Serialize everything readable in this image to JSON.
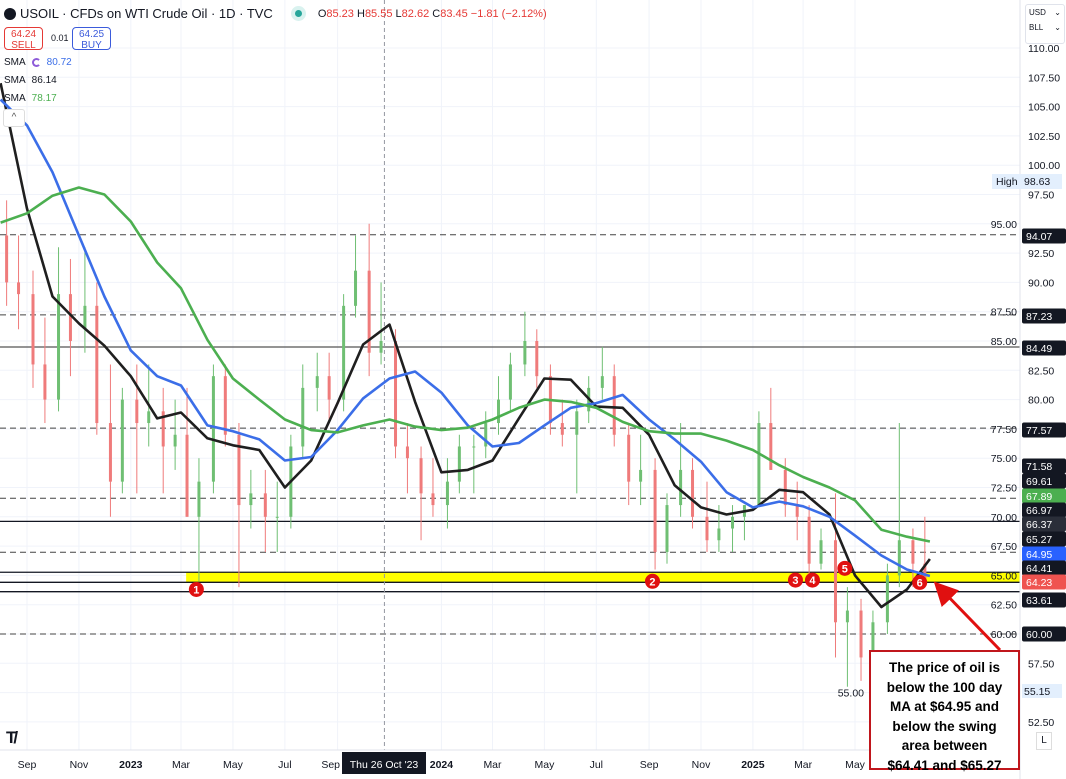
{
  "header": {
    "title": "USOIL · CFDs on WTI Crude Oil · 1D · TVC",
    "ohlc": {
      "o_label": "O",
      "o": "85.23",
      "h_label": "H",
      "h": "85.55",
      "l_label": "L",
      "l": "82.62",
      "c_label": "C",
      "c": "83.45",
      "change": "−1.81 (−2.12%)"
    }
  },
  "trade": {
    "sell_price": "64.24",
    "sell_label": "SELL",
    "spread": "0.01",
    "buy_price": "64.25",
    "buy_label": "BUY"
  },
  "legend": [
    {
      "name": "SMA",
      "value": "80.72",
      "color": "#3b6ee8"
    },
    {
      "name": "SMA",
      "value": "86.14",
      "color": "#131722"
    },
    {
      "name": "SMA",
      "value": "78.17",
      "color": "#4caf50"
    }
  ],
  "currency": {
    "currency": "USD",
    "unit": "BLL"
  },
  "crosshair_label": "Thu 26 Oct '23",
  "high_marker": {
    "label": "High",
    "value": "98.63"
  },
  "low_marker": {
    "value": "55.15"
  },
  "annotation": {
    "lines": [
      "The price of oil is",
      "below the 100 day",
      "MA at $64.95 and",
      "below the swing",
      "area between",
      "$64.41 and $65.27"
    ]
  },
  "log_button": "L",
  "colors": {
    "up": "#6fbf73",
    "down": "#ef7b7b",
    "sma_fast": "#1f1f1f",
    "sma_mid": "#3b6ee8",
    "sma_slow": "#4caf50",
    "swing_zone": "#ffff00",
    "marker": "#e01010",
    "annotation": "#c0161c"
  },
  "chart_data": {
    "type": "candlestick",
    "y_axis": {
      "max": 110,
      "min": 52.5,
      "ticks": [
        "110.00",
        "107.50",
        "105.00",
        "102.50",
        "100.00",
        "97.50",
        "95.00",
        "92.50",
        "90.00",
        "87.50",
        "85.00",
        "82.50",
        "80.00",
        "77.50",
        "75.00",
        "72.50",
        "70.00",
        "67.50",
        "65.00",
        "62.50",
        "60.00",
        "57.50",
        "55.00",
        "52.50"
      ]
    },
    "x_ticks": [
      {
        "label": "Sep",
        "date": "2022-09-01",
        "bold": false
      },
      {
        "label": "Nov",
        "date": "2022-11-01",
        "bold": false
      },
      {
        "label": "2023",
        "date": "2023-01-01",
        "bold": true
      },
      {
        "label": "Mar",
        "date": "2023-03-01",
        "bold": false
      },
      {
        "label": "May",
        "date": "2023-05-01",
        "bold": false
      },
      {
        "label": "Jul",
        "date": "2023-07-01",
        "bold": false
      },
      {
        "label": "Sep",
        "date": "2023-09-01",
        "bold": false
      },
      {
        "label": "2024",
        "date": "2024-01-01",
        "bold": true
      },
      {
        "label": "Mar",
        "date": "2024-03-01",
        "bold": false
      },
      {
        "label": "May",
        "date": "2024-05-01",
        "bold": false
      },
      {
        "label": "Jul",
        "date": "2024-07-01",
        "bold": false
      },
      {
        "label": "Sep",
        "date": "2024-09-01",
        "bold": false
      },
      {
        "label": "Nov",
        "date": "2024-11-01",
        "bold": false
      },
      {
        "label": "2025",
        "date": "2025-01-01",
        "bold": true
      },
      {
        "label": "Mar",
        "date": "2025-03-01",
        "bold": false
      },
      {
        "label": "May",
        "date": "2025-05-01",
        "bold": false
      }
    ],
    "crosshair_date": "2023-10-26",
    "candles_ohlc": [
      [
        "2022-08-01",
        94,
        97,
        88,
        90
      ],
      [
        "2022-08-15",
        90,
        94,
        86,
        89
      ],
      [
        "2022-09-01",
        89,
        91,
        81,
        83
      ],
      [
        "2022-09-15",
        83,
        87,
        78,
        80
      ],
      [
        "2022-10-01",
        80,
        93,
        79,
        89
      ],
      [
        "2022-10-15",
        89,
        92,
        82,
        85
      ],
      [
        "2022-11-01",
        86,
        93,
        84,
        88
      ],
      [
        "2022-11-15",
        88,
        90,
        77,
        78
      ],
      [
        "2022-12-01",
        78,
        83,
        70,
        73
      ],
      [
        "2022-12-15",
        73,
        81,
        72,
        80
      ],
      [
        "2023-01-01",
        80,
        83,
        72,
        78
      ],
      [
        "2023-01-15",
        78,
        83,
        76,
        79
      ],
      [
        "2023-02-01",
        79,
        81,
        72,
        76
      ],
      [
        "2023-02-15",
        76,
        80,
        74,
        77
      ],
      [
        "2023-03-01",
        77,
        81,
        70,
        70
      ],
      [
        "2023-03-15",
        70,
        75,
        64.5,
        73
      ],
      [
        "2023-04-01",
        73,
        83,
        72,
        82
      ],
      [
        "2023-04-15",
        82,
        83,
        76,
        77
      ],
      [
        "2023-05-01",
        77,
        78,
        64,
        71
      ],
      [
        "2023-05-15",
        71,
        74,
        69,
        72
      ],
      [
        "2023-06-01",
        72,
        74,
        67,
        70
      ],
      [
        "2023-06-15",
        70,
        73,
        67,
        70
      ],
      [
        "2023-07-01",
        70,
        77,
        69,
        76
      ],
      [
        "2023-07-15",
        76,
        83,
        75,
        81
      ],
      [
        "2023-08-01",
        81,
        84,
        79,
        82
      ],
      [
        "2023-08-15",
        82,
        84,
        78,
        80
      ],
      [
        "2023-09-01",
        80,
        89,
        79,
        88
      ],
      [
        "2023-09-15",
        88,
        94,
        87,
        91
      ],
      [
        "2023-10-01",
        91,
        95,
        82,
        84
      ],
      [
        "2023-10-15",
        84,
        90,
        83,
        85
      ],
      [
        "2023-11-01",
        85,
        86,
        75,
        76
      ],
      [
        "2023-11-15",
        76,
        78,
        72,
        75
      ],
      [
        "2023-12-01",
        75,
        76,
        68,
        72
      ],
      [
        "2023-12-15",
        72,
        75,
        70,
        71
      ],
      [
        "2024-01-01",
        71,
        75,
        69,
        73
      ],
      [
        "2024-01-15",
        73,
        77,
        72,
        76
      ],
      [
        "2024-02-01",
        76,
        77,
        72,
        76
      ],
      [
        "2024-02-15",
        76,
        79,
        75,
        78
      ],
      [
        "2024-03-01",
        78,
        82,
        77,
        80
      ],
      [
        "2024-03-15",
        80,
        84,
        79,
        83
      ],
      [
        "2024-04-01",
        83,
        87.5,
        82,
        85
      ],
      [
        "2024-04-15",
        85,
        86,
        81,
        82
      ],
      [
        "2024-05-01",
        82,
        83,
        77,
        78
      ],
      [
        "2024-05-15",
        78,
        80,
        76,
        77
      ],
      [
        "2024-06-01",
        77,
        80,
        72,
        79
      ],
      [
        "2024-06-15",
        79,
        82,
        78,
        81
      ],
      [
        "2024-07-01",
        81,
        84.5,
        80,
        82
      ],
      [
        "2024-07-15",
        82,
        83,
        76,
        77
      ],
      [
        "2024-08-01",
        77,
        78,
        71,
        73
      ],
      [
        "2024-08-15",
        73,
        77,
        71,
        74
      ],
      [
        "2024-09-01",
        74,
        75,
        65.5,
        67
      ],
      [
        "2024-09-15",
        67,
        72,
        66,
        71
      ],
      [
        "2024-10-01",
        71,
        78,
        70,
        74
      ],
      [
        "2024-10-15",
        74,
        75,
        69,
        70
      ],
      [
        "2024-11-01",
        70,
        73,
        67,
        68
      ],
      [
        "2024-11-15",
        68,
        71,
        67,
        69
      ],
      [
        "2024-12-01",
        69,
        71,
        67,
        70
      ],
      [
        "2024-12-15",
        70,
        71,
        68,
        71
      ],
      [
        "2025-01-01",
        71,
        79,
        71,
        78
      ],
      [
        "2025-01-15",
        78,
        81,
        74,
        74
      ],
      [
        "2025-02-01",
        74,
        75,
        70,
        71
      ],
      [
        "2025-02-15",
        71,
        73,
        68,
        70
      ],
      [
        "2025-03-01",
        70,
        71,
        65,
        66
      ],
      [
        "2025-03-15",
        66,
        69,
        65.5,
        68
      ],
      [
        "2025-04-01",
        68,
        72,
        58,
        61
      ],
      [
        "2025-04-15",
        61,
        64,
        55.5,
        62
      ],
      [
        "2025-05-01",
        62,
        63,
        56,
        58
      ],
      [
        "2025-05-15",
        58,
        62,
        57,
        61
      ],
      [
        "2025-06-01",
        61,
        66,
        60,
        65
      ],
      [
        "2025-06-15",
        65,
        78,
        64,
        68
      ],
      [
        "2025-07-01",
        68,
        69,
        64,
        66
      ],
      [
        "2025-07-15",
        66,
        70,
        64,
        64.23
      ]
    ],
    "sma_dates": [
      "2022-08-01",
      "2022-09-01",
      "2022-10-01",
      "2022-11-01",
      "2022-12-01",
      "2023-01-01",
      "2023-02-01",
      "2023-03-01",
      "2023-04-01",
      "2023-05-01",
      "2023-06-01",
      "2023-07-01",
      "2023-08-01",
      "2023-09-01",
      "2023-10-01",
      "2023-11-01",
      "2023-12-01",
      "2024-01-01",
      "2024-02-01",
      "2024-03-01",
      "2024-04-01",
      "2024-05-01",
      "2024-06-01",
      "2024-07-01",
      "2024-08-01",
      "2024-09-01",
      "2024-10-01",
      "2024-11-01",
      "2024-12-01",
      "2025-01-01",
      "2025-02-01",
      "2025-03-01",
      "2025-04-01",
      "2025-05-01",
      "2025-06-01",
      "2025-07-01",
      "2025-07-28"
    ],
    "series": [
      {
        "name": "SMA",
        "color": "#1f1f1f",
        "values": [
          107.0,
          96.3,
          88.8,
          86.5,
          84.6,
          82.0,
          78.4,
          78.9,
          76.7,
          76.1,
          75.7,
          72.5,
          74.8,
          79.7,
          84.7,
          86.4,
          79.8,
          73.8,
          74.0,
          74.8,
          78.4,
          81.8,
          81.7,
          79.4,
          79.3,
          77.0,
          72.7,
          70.8,
          70.2,
          70.6,
          72.3,
          72.1,
          70.2,
          65.0,
          62.3,
          63.8,
          66.4
        ]
      },
      {
        "name": "SMA",
        "color": "#3b6ee8",
        "values": [
          105.6,
          103.4,
          99.4,
          94.0,
          88.8,
          84.2,
          82.0,
          81.2,
          77.8,
          77.3,
          76.6,
          74.8,
          75.1,
          77.4,
          80.1,
          81.8,
          82.4,
          80.6,
          77.8,
          76.0,
          76.3,
          77.8,
          79.3,
          79.7,
          80.4,
          78.3,
          76.6,
          74.7,
          72.1,
          70.8,
          71.3,
          70.9,
          70.0,
          68.4,
          66.7,
          65.5,
          64.95
        ]
      },
      {
        "name": "SMA",
        "color": "#4caf50",
        "values": [
          95.1,
          95.9,
          97.4,
          98.1,
          97.5,
          95.2,
          91.7,
          89.5,
          85.1,
          81.8,
          80.0,
          78.3,
          77.4,
          77.2,
          77.8,
          78.3,
          77.7,
          77.4,
          77.6,
          78.3,
          79.3,
          80.0,
          79.8,
          79.3,
          78.1,
          77.3,
          77.1,
          77.1,
          76.5,
          75.7,
          74.4,
          73.4,
          72.5,
          71.4,
          68.9,
          68.3,
          67.89
        ]
      }
    ],
    "levels": [
      {
        "value": 94.07,
        "style": "dashed"
      },
      {
        "value": 87.23,
        "style": "dashed"
      },
      {
        "value": 84.49,
        "style": "solid"
      },
      {
        "value": 77.57,
        "style": "dashed"
      },
      {
        "value": 71.58,
        "style": "dashed"
      },
      {
        "value": 69.61,
        "style": "solid"
      },
      {
        "value": 66.97,
        "style": "dashed"
      },
      {
        "value": 65.27,
        "style": "solid"
      },
      {
        "value": 64.41,
        "style": "solid"
      },
      {
        "value": 63.61,
        "style": "solid"
      },
      {
        "value": 60.0,
        "style": "dashed"
      }
    ],
    "swing_zone": {
      "from_date": "2023-03-07",
      "low": 64.41,
      "high": 65.27
    },
    "price_tags": [
      {
        "value": "94.07",
        "color": "#131722"
      },
      {
        "value": "87.23",
        "color": "#131722"
      },
      {
        "value": "84.49",
        "color": "#131722"
      },
      {
        "value": "77.57",
        "color": "#131722"
      },
      {
        "value": "71.58",
        "color": "#131722"
      },
      {
        "value": "69.61",
        "color": "#131722"
      },
      {
        "value": "67.89",
        "color": "#4caf50"
      },
      {
        "value": "66.97",
        "color": "#131722"
      },
      {
        "value": "66.37",
        "color": "#2a2e39"
      },
      {
        "value": "65.27",
        "color": "#131722"
      },
      {
        "value": "64.95",
        "color": "#2962ff"
      },
      {
        "value": "64.41",
        "color": "#131722"
      },
      {
        "value": "64.23",
        "color": "#ef5350"
      },
      {
        "value": "63.61",
        "color": "#131722"
      },
      {
        "value": "60.00",
        "color": "#131722"
      }
    ],
    "markers": [
      {
        "label": "1",
        "date": "2023-03-19",
        "value": 63.8
      },
      {
        "label": "2",
        "date": "2024-09-05",
        "value": 64.5
      },
      {
        "label": "3",
        "date": "2025-02-25",
        "value": 64.6
      },
      {
        "label": "4",
        "date": "2025-03-07",
        "value": 64.6
      },
      {
        "label": "5",
        "date": "2025-04-19",
        "value": 65.6
      },
      {
        "label": "6",
        "date": "2025-07-16",
        "value": 64.4
      }
    ]
  }
}
